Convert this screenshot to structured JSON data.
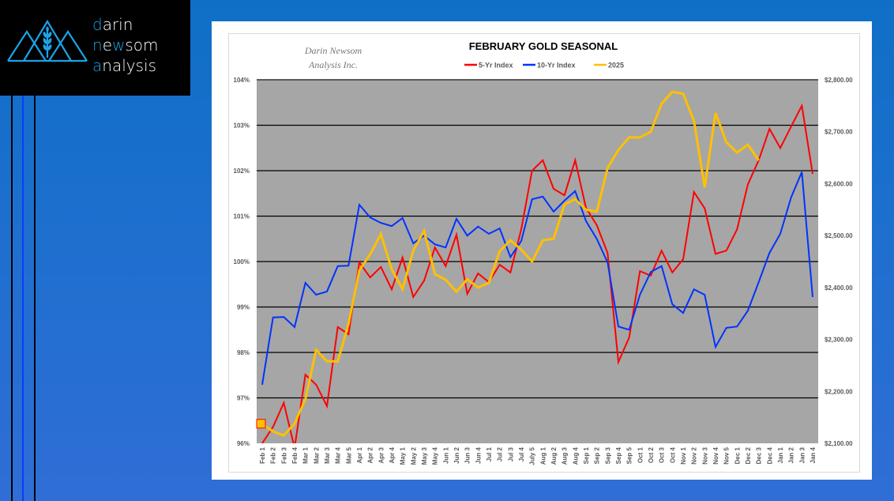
{
  "logo": {
    "lines": [
      {
        "accent": "d",
        "rest": "arin"
      },
      {
        "accent": "n",
        "mid": "e",
        "accent2": "w",
        "rest": "som"
      },
      {
        "accent": "a",
        "rest": "nalysis"
      }
    ],
    "accent_color": "#1aa3e8"
  },
  "chart_data": {
    "type": "line",
    "title": "FEBRUARY GOLD SEASONAL",
    "watermark": [
      "Darin Newsom",
      "Analysis Inc."
    ],
    "legend_position": "top",
    "grid": true,
    "categories": [
      "Feb 1",
      "Feb 2",
      "Feb 3",
      "Feb 4",
      "Mar 1",
      "Mar 2",
      "Mar 3",
      "Mar 4",
      "Mar 5",
      "Apr 1",
      "Apr 2",
      "Apr 3",
      "Apr 4",
      "May 1",
      "May 2",
      "May 3",
      "May 4",
      "Jun 1",
      "Jun 2",
      "Jun 3",
      "Jun 4",
      "Jul 1",
      "Jul 2",
      "Jul 3",
      "Jul 4",
      "July 5",
      "Aug 1",
      "Aug 2",
      "Aug 3",
      "Aug 4",
      "Sep 1",
      "Sep 2",
      "Sep 3",
      "Sep 4",
      "Sep 5",
      "Oct 1",
      "Oct 2",
      "Oct 3",
      "Oct 4",
      "Nov 1",
      "Nov 2",
      "Nov 3",
      "Nov 4",
      "Nov 5",
      "Dec 1",
      "Dec 2",
      "Dec 3",
      "Dec 4",
      "Jan 1",
      "Jan 2",
      "Jan 3",
      "Jan 4"
    ],
    "y_left": {
      "ylim": [
        96,
        104
      ],
      "ticks": [
        "96%",
        "97%",
        "98%",
        "99%",
        "100%",
        "101%",
        "102%",
        "103%",
        "104%"
      ]
    },
    "y_right": {
      "ylim": [
        2100,
        2800
      ],
      "ticks": [
        "$2,100.00",
        "$2,200.00",
        "$2,300.00",
        "$2,400.00",
        "$2,500.00",
        "$2,600.00",
        "$2,700.00",
        "$2,800.00"
      ]
    },
    "series": [
      {
        "name": "5-Yr Index",
        "axis": "left",
        "color": "#ff0000",
        "values": [
          96.0,
          96.36,
          96.89,
          95.9,
          97.51,
          97.29,
          96.82,
          98.56,
          98.4,
          99.98,
          99.65,
          99.88,
          99.39,
          100.09,
          99.22,
          99.58,
          100.31,
          99.9,
          100.59,
          99.29,
          99.74,
          99.55,
          99.93,
          99.76,
          100.71,
          102.0,
          102.23,
          101.6,
          101.46,
          102.23,
          101.18,
          100.8,
          100.19,
          97.79,
          98.33,
          99.79,
          99.69,
          100.24,
          99.76,
          100.05,
          101.53,
          101.17,
          100.17,
          100.24,
          100.71,
          101.7,
          102.23,
          102.92,
          102.5,
          102.97,
          103.43,
          101.93
        ]
      },
      {
        "name": "10-Yr Index",
        "axis": "left",
        "color": "#0033ff",
        "values": [
          97.29,
          98.77,
          98.78,
          98.56,
          99.53,
          99.27,
          99.34,
          99.9,
          99.91,
          101.25,
          100.97,
          100.85,
          100.78,
          100.96,
          100.4,
          100.57,
          100.38,
          100.31,
          100.94,
          100.57,
          100.77,
          100.61,
          100.73,
          100.1,
          100.45,
          101.37,
          101.43,
          101.1,
          101.34,
          101.55,
          100.89,
          100.5,
          99.98,
          98.57,
          98.5,
          99.27,
          99.77,
          99.9,
          99.06,
          98.87,
          99.39,
          99.27,
          98.12,
          98.54,
          98.57,
          98.92,
          99.55,
          100.19,
          100.61,
          101.41,
          101.97,
          99.22
        ]
      },
      {
        "name": "2025",
        "axis": "right",
        "color": "#ffc000",
        "values": [
          2137,
          2123,
          2115,
          2138,
          2185,
          2280,
          2258,
          2258,
          2330,
          2433,
          2464,
          2503,
          2435,
          2397,
          2471,
          2509,
          2426,
          2415,
          2392,
          2416,
          2400,
          2409,
          2470,
          2491,
          2473,
          2450,
          2491,
          2494,
          2560,
          2570,
          2550,
          2546,
          2630,
          2665,
          2689,
          2689,
          2700,
          2754,
          2777,
          2773,
          2721,
          2593,
          2736,
          2680,
          2660,
          2675,
          2645,
          null,
          null,
          null,
          null,
          null
        ]
      }
    ]
  }
}
